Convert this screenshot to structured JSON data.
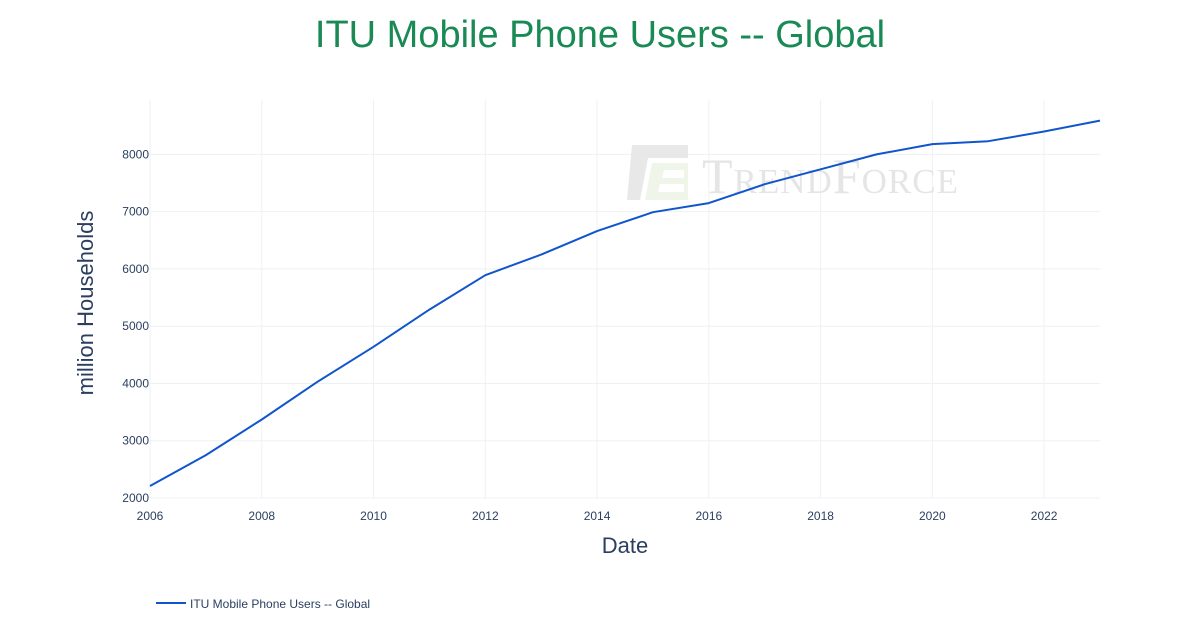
{
  "chart_data": {
    "type": "line",
    "title": "ITU Mobile Phone Users -- Global",
    "xlabel": "Date",
    "ylabel": "million Households",
    "xlim": [
      2006,
      2023
    ],
    "ylim": [
      2000,
      8950
    ],
    "x_ticks": [
      2006,
      2008,
      2010,
      2012,
      2014,
      2016,
      2018,
      2020,
      2022
    ],
    "y_ticks": [
      2000,
      3000,
      4000,
      5000,
      6000,
      7000,
      8000
    ],
    "grid": true,
    "legend_position": "bottom-left",
    "series": [
      {
        "name": "ITU Mobile Phone Users -- Global",
        "color": "#1155cc",
        "x": [
          2006,
          2007,
          2008,
          2009,
          2010,
          2011,
          2012,
          2013,
          2014,
          2015,
          2016,
          2017,
          2018,
          2019,
          2020,
          2021,
          2022,
          2023
        ],
        "values": [
          2210,
          2750,
          3370,
          4030,
          4640,
          5290,
          5890,
          6250,
          6660,
          6990,
          7150,
          7480,
          7740,
          8000,
          8180,
          8230,
          8400,
          8590
        ]
      }
    ]
  },
  "watermark": {
    "text": "TrendForce",
    "color": "#e3e3e3"
  }
}
